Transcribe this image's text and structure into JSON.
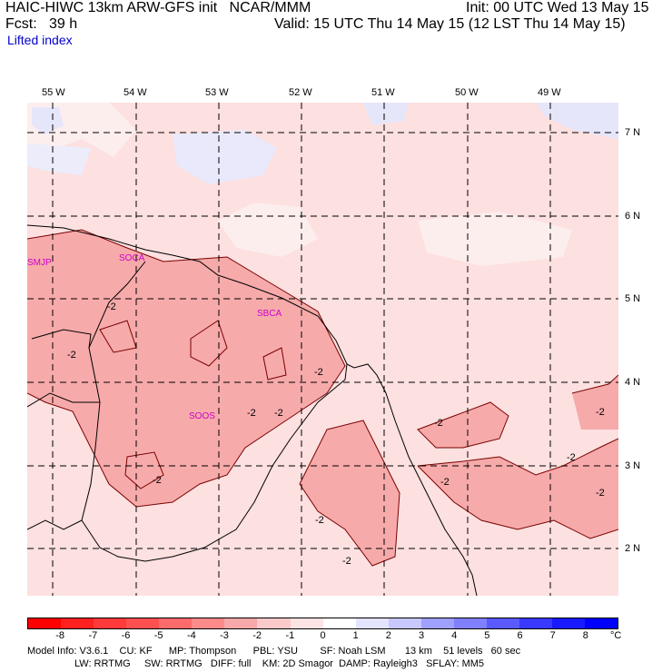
{
  "header": {
    "title": "HAIC-HIWC 13km ARW-GFS init   NCAR/MMM",
    "init": "Init: 00 UTC Wed 13 May 15",
    "fcst": "Fcst:   39 h",
    "valid": "Valid: 15 UTC Thu 14 May 15 (12 LST Thu 14 May 15)",
    "field": "Lifted index"
  },
  "lon_labels": [
    "55 W",
    "54 W",
    "53 W",
    "52 W",
    "51 W",
    "50 W",
    "49 W"
  ],
  "lat_labels": [
    "7 N",
    "6 N",
    "5 N",
    "4 N",
    "3 N",
    "2 N"
  ],
  "stations": [
    "SMJP",
    "SOCA",
    "SBCA",
    "SOOS"
  ],
  "contour_label": "-2",
  "colorbar": {
    "ticks": [
      "-8",
      "-7",
      "-6",
      "-5",
      "-4",
      "-3",
      "-2",
      "-1",
      "0",
      "1",
      "2",
      "3",
      "4",
      "5",
      "6",
      "7",
      "8"
    ],
    "unit": "°C",
    "colors": [
      "#ff0000",
      "#ff2020",
      "#ff3a3a",
      "#ff5050",
      "#ff6a6a",
      "#ff8a8a",
      "#f7a8a8",
      "#fccaca",
      "#fde4e4",
      "#ffffff",
      "#e4e4ff",
      "#c8c8ff",
      "#a0a0ff",
      "#8080ff",
      "#5a5aff",
      "#3a3aff",
      "#1a1aff",
      "#0000ff"
    ]
  },
  "footer": {
    "line1": "Model Info: V3.6.1    CU: KF      MP: Thompson      PBL: YSU        SF: Noah LSM       13 km    51 levels   60 sec",
    "line2": "                 LW: RRTMG     SW: RRTMG   DIFF: full    KM: 2D Smagor  DAMP: Rayleigh3   SFLAY: MM5"
  }
}
